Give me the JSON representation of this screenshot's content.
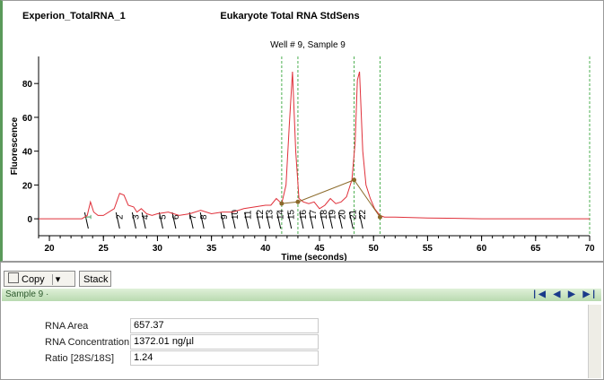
{
  "header": {
    "file": "Experion_TotalRNA_1",
    "assay": "Eukaryote Total RNA StdSens"
  },
  "chart_data": {
    "type": "line",
    "title": "Well # 9, Sample 9",
    "x_label": "Time (seconds)",
    "y_label": "Fluorescence",
    "x": [
      19,
      23,
      23.5,
      23.8,
      24.1,
      24.5,
      25,
      26,
      26.5,
      26.9,
      27.3,
      27.8,
      28.1,
      28.5,
      29,
      29.5,
      30,
      31,
      32,
      33,
      34,
      35,
      36,
      37,
      38,
      39,
      40,
      40.5,
      41,
      41.5,
      41.9,
      42.2,
      42.5,
      42.8,
      43.1,
      43.5,
      44,
      44.5,
      45,
      45.5,
      46,
      46.5,
      47,
      47.5,
      48,
      48.3,
      48.5,
      48.7,
      49,
      49.3,
      49.7,
      50.1,
      50.6,
      51,
      52,
      55,
      60,
      65,
      70
    ],
    "series": [
      {
        "color": "#e0303a",
        "values": [
          0,
          0,
          2,
          10,
          4,
          2,
          2,
          6,
          15,
          14,
          8,
          7,
          4,
          6,
          3,
          2,
          3,
          4,
          2,
          3,
          5,
          3,
          4,
          4,
          6,
          7,
          8,
          8,
          12,
          9,
          20,
          55,
          87,
          40,
          12,
          10,
          9,
          10,
          6,
          8,
          12,
          9,
          10,
          13,
          23,
          45,
          82,
          87,
          40,
          20,
          12,
          6,
          2,
          1,
          1,
          0.5,
          0,
          0,
          0
        ]
      }
    ],
    "region_lines": {
      "x": [
        41.5,
        43.0,
        48.2,
        50.6
      ],
      "color": "#4caf50"
    },
    "markers": {
      "x": [
        41.5,
        43.0,
        48.2,
        50.6
      ],
      "values": [
        9,
        10,
        23,
        1
      ],
      "color": "#8b6a2a"
    },
    "peak_labels": [
      {
        "value": 23.6,
        "label": "1"
      },
      {
        "value": 26.5,
        "label": "2"
      },
      {
        "value": 28,
        "label": "3"
      },
      {
        "value": 28.9,
        "label": "4"
      },
      {
        "value": 30.5,
        "label": "5"
      },
      {
        "value": 31.7,
        "label": "6"
      },
      {
        "value": 33.3,
        "label": "7"
      },
      {
        "value": 34.3,
        "label": "8"
      },
      {
        "value": 36.2,
        "label": "9"
      },
      {
        "value": 37.2,
        "label": "10"
      },
      {
        "value": 38.4,
        "label": "11"
      },
      {
        "value": 39.5,
        "label": "12"
      },
      {
        "value": 40.4,
        "label": "13"
      },
      {
        "value": 41.4,
        "label": "14"
      },
      {
        "value": 42.4,
        "label": "15"
      },
      {
        "value": 43.5,
        "label": "16"
      },
      {
        "value": 44.4,
        "label": "17"
      },
      {
        "value": 45.4,
        "label": "18"
      },
      {
        "value": 46.2,
        "label": "19"
      },
      {
        "value": 47.1,
        "label": "20"
      },
      {
        "value": 48.1,
        "label": "21"
      },
      {
        "value": 49,
        "label": "22"
      }
    ],
    "xlim": [
      19,
      70
    ],
    "ylim": [
      -10,
      96
    ],
    "xticks": [
      20,
      25,
      30,
      35,
      40,
      45,
      50,
      55,
      60,
      65,
      70
    ],
    "yticks": [
      0,
      20,
      40,
      60,
      80
    ]
  },
  "toolbar": {
    "copy": "Copy",
    "stack": "Stack"
  },
  "results": {
    "sample": "Sample 9",
    "rows": [
      [
        "RNA Area",
        "657.37"
      ],
      [
        "RNA Concentration",
        "1372.01 ng/µl"
      ],
      [
        "Ratio [28S/18S]",
        "1.24"
      ]
    ]
  }
}
